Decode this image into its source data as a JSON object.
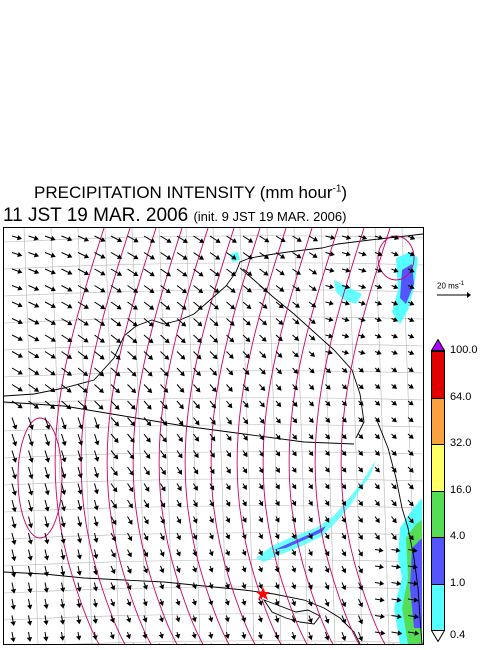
{
  "title": {
    "text": "PRECIPITATION INTENSITY (mm hour",
    "sup": "-1",
    "close": ")"
  },
  "subtitle": {
    "main": "11 JST 19 MAR. 2006",
    "init": "(init. 9 JST 19 MAR. 2006)"
  },
  "reference_vector": {
    "label": "20 ms",
    "sup": "-1"
  },
  "colorbar": {
    "ticks": [
      "100.0",
      "64.0",
      "32.0",
      "16.0",
      "4.0",
      "1.0",
      "0.4"
    ],
    "colors": [
      "#e00000",
      "#f9a040",
      "#ffff66",
      "#55dd55",
      "#5555ff",
      "#55ffff"
    ],
    "above_color": "#b000ff",
    "below_color": "#ffffff"
  },
  "map": {
    "marker": {
      "symbol": "star",
      "color": "#ff0000"
    },
    "contour_color": "#cc0066",
    "coast_color": "#000000",
    "grid_color": "#b4b4b4"
  }
}
